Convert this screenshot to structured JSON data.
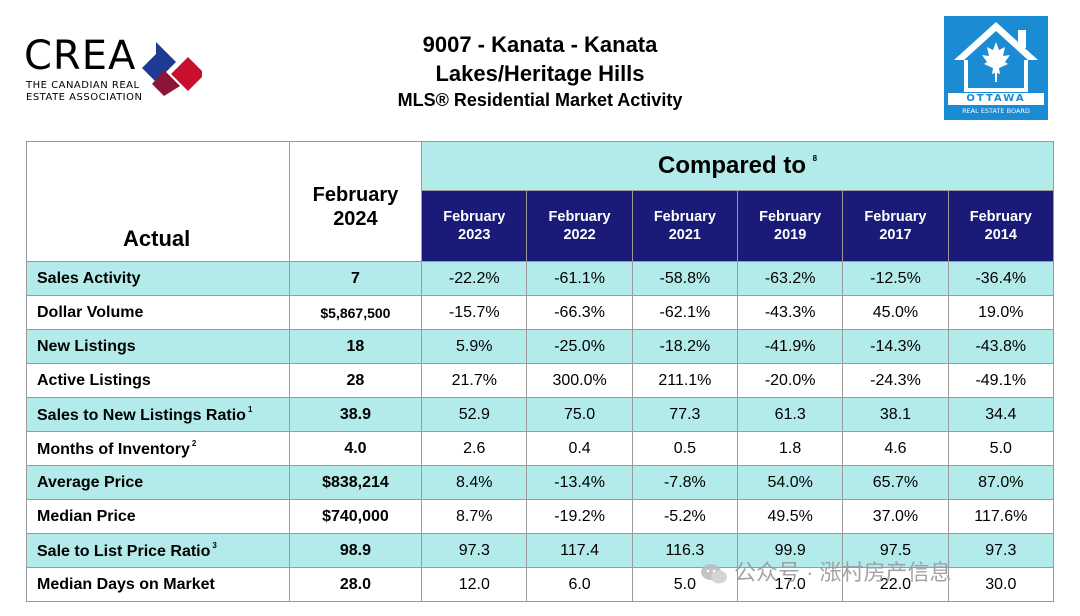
{
  "logos": {
    "crea_word": "CREA",
    "crea_subtitle_line1": "THE CANADIAN REAL",
    "crea_subtitle_line2": "ESTATE ASSOCIATION",
    "ottawa_name": "OTTAWA",
    "ottawa_subtitle": "REAL ESTATE BOARD"
  },
  "title": {
    "line1": "9007 - Kanata - Kanata",
    "line2": "Lakes/Heritage Hills",
    "line3": "MLS® Residential Market Activity"
  },
  "table": {
    "actual_header": "Actual",
    "current_period_line1": "February",
    "current_period_line2": "2024",
    "compared_to": "Compared to",
    "compared_note": "8",
    "periods": [
      {
        "month": "February",
        "year": "2023"
      },
      {
        "month": "February",
        "year": "2022"
      },
      {
        "month": "February",
        "year": "2021"
      },
      {
        "month": "February",
        "year": "2019"
      },
      {
        "month": "February",
        "year": "2017"
      },
      {
        "month": "February",
        "year": "2014"
      }
    ],
    "rows": [
      {
        "label": "Sales Activity",
        "note": "",
        "actual": "7",
        "values": [
          "-22.2%",
          "-61.1%",
          "-58.8%",
          "-63.2%",
          "-12.5%",
          "-36.4%"
        ]
      },
      {
        "label": "Dollar Volume",
        "note": "",
        "actual": "$5,867,500",
        "values": [
          "-15.7%",
          "-66.3%",
          "-62.1%",
          "-43.3%",
          "45.0%",
          "19.0%"
        ]
      },
      {
        "label": "New Listings",
        "note": "",
        "actual": "18",
        "values": [
          "5.9%",
          "-25.0%",
          "-18.2%",
          "-41.9%",
          "-14.3%",
          "-43.8%"
        ]
      },
      {
        "label": "Active Listings",
        "note": "",
        "actual": "28",
        "values": [
          "21.7%",
          "300.0%",
          "211.1%",
          "-20.0%",
          "-24.3%",
          "-49.1%"
        ]
      },
      {
        "label": "Sales to New Listings Ratio",
        "note": "1",
        "actual": "38.9",
        "values": [
          "52.9",
          "75.0",
          "77.3",
          "61.3",
          "38.1",
          "34.4"
        ]
      },
      {
        "label": "Months of Inventory",
        "note": "2",
        "actual": "4.0",
        "values": [
          "2.6",
          "0.4",
          "0.5",
          "1.8",
          "4.6",
          "5.0"
        ]
      },
      {
        "label": "Average Price",
        "note": "",
        "actual": "$838,214",
        "values": [
          "8.4%",
          "-13.4%",
          "-7.8%",
          "54.0%",
          "65.7%",
          "87.0%"
        ]
      },
      {
        "label": "Median Price",
        "note": "",
        "actual": "$740,000",
        "values": [
          "8.7%",
          "-19.2%",
          "-5.2%",
          "49.5%",
          "37.0%",
          "117.6%"
        ]
      },
      {
        "label": "Sale to List Price Ratio",
        "note": "3",
        "actual": "98.9",
        "values": [
          "97.3",
          "117.4",
          "116.3",
          "99.9",
          "97.5",
          "97.3"
        ]
      },
      {
        "label": "Median Days on Market",
        "note": "",
        "actual": "28.0",
        "values": [
          "12.0",
          "6.0",
          "5.0",
          "17.0",
          "22.0",
          "30.0"
        ]
      }
    ]
  },
  "watermark": {
    "text": "公众号 · 涨村房产信息",
    "icon": "wechat-icon"
  },
  "colors": {
    "row_highlight": "#b3eaea",
    "year_header": "#1a1a78",
    "ottawa_blue": "#1b8bd3",
    "crea_red": "#c8102e",
    "crea_blue": "#1f3a93"
  }
}
